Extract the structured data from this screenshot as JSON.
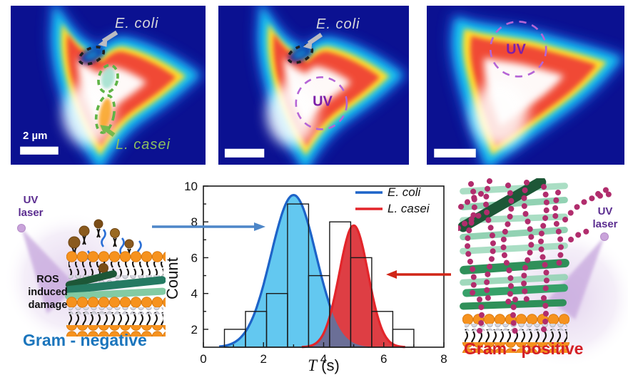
{
  "figure": {
    "panels": [
      {
        "ecoli_label": "E. coli",
        "lcasei_label": "L. casei",
        "scalebar_label": "2 µm"
      },
      {
        "ecoli_label": "E. coli",
        "uv_label": "UV"
      },
      {
        "uv_label": "UV"
      }
    ],
    "left_diagram": {
      "laser_line1": "UV",
      "laser_line2": "laser",
      "ros_lines": [
        "ROS",
        "induced",
        "damage"
      ],
      "gram_label": "Gram - negative"
    },
    "right_diagram": {
      "laser_line1": "UV",
      "laser_line2": "laser",
      "gram_label": "Gram - positive"
    }
  },
  "chart_data": {
    "type": "histogram",
    "title": "",
    "xlabel_symbol": "T",
    "xlabel_unit": "(s)",
    "ylabel": "Count",
    "xlim": [
      0,
      8
    ],
    "ylim": [
      1,
      10
    ],
    "xticks": [
      0,
      2,
      4,
      6,
      8
    ],
    "xminor": [
      1,
      3,
      5,
      7
    ],
    "yticks": [
      2,
      4,
      6,
      8,
      10
    ],
    "yminor": [
      3,
      5,
      7,
      9
    ],
    "baseline": 1,
    "bins": {
      "start": 0.7,
      "width": 0.7,
      "counts": [
        2,
        3,
        4,
        9,
        5,
        8,
        6,
        3,
        2
      ]
    },
    "curves": [
      {
        "name": "E. coli",
        "mu": 3.0,
        "sigma": 0.75,
        "peak": 9.5,
        "line_color": "#1d63c8",
        "fill_color": "#63c8f0"
      },
      {
        "name": "L. casei",
        "mu": 5.0,
        "sigma": 0.48,
        "peak": 7.8,
        "line_color": "#e3252a",
        "fill_color": "#de3e44"
      }
    ],
    "overlap_color": "#6b6f97",
    "legend_position": "top-right",
    "grid": false
  },
  "colors": {
    "heatmap_background": "#0b1191",
    "gram_negative_text": "#1b75bc",
    "gram_positive_text": "#d41f26",
    "uv_laser_text": "#5b2d90",
    "uv_circle": "#b565d6",
    "ecoli_annotation_text": "#d8d8dc",
    "lcasei_annotation_text": "#8cc05e",
    "blue_arrow": "#4d86c8",
    "red_arrow": "#d02517"
  }
}
